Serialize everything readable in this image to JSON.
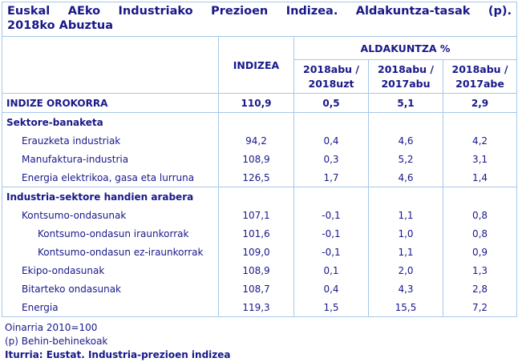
{
  "title": {
    "line1": "Euskal AEko Industriako Prezioen Indizea. Aldakuntza-tasak (p).",
    "line2": "2018ko Abuztua"
  },
  "table": {
    "col_headers": {
      "indizea": "INDIZEA",
      "aldakuntza": "ALDAKUNTZA %",
      "sub": [
        "2018abu /\n2018uzt",
        "2018abu /\n2017abu",
        "2018abu /\n2017abe"
      ]
    },
    "rows": [
      {
        "label": "INDIZE OROKORRA",
        "indent": 0,
        "bold": true,
        "top_border": false,
        "values": [
          "110,9",
          "0,5",
          "5,1",
          "2,9"
        ]
      },
      {
        "label": "Sektore-banaketa",
        "indent": 0,
        "bold": true,
        "top_border": true,
        "values": [
          "",
          "",
          "",
          ""
        ]
      },
      {
        "label": "Erauzketa industriak",
        "indent": 1,
        "bold": false,
        "top_border": false,
        "values": [
          "94,2",
          "0,4",
          "4,6",
          "4,2"
        ]
      },
      {
        "label": "Manufaktura-industria",
        "indent": 1,
        "bold": false,
        "top_border": false,
        "values": [
          "108,9",
          "0,3",
          "5,2",
          "3,1"
        ]
      },
      {
        "label": "Energia elektrikoa, gasa eta lurruna",
        "indent": 1,
        "bold": false,
        "top_border": false,
        "values": [
          "126,5",
          "1,7",
          "4,6",
          "1,4"
        ]
      },
      {
        "label": "Industria-sektore handien arabera",
        "indent": 0,
        "bold": true,
        "top_border": true,
        "values": [
          "",
          "",
          "",
          ""
        ]
      },
      {
        "label": "Kontsumo-ondasunak",
        "indent": 1,
        "bold": false,
        "top_border": false,
        "values": [
          "107,1",
          "-0,1",
          "1,1",
          "0,8"
        ]
      },
      {
        "label": "Kontsumo-ondasun iraunkorrak",
        "indent": 2,
        "bold": false,
        "top_border": false,
        "values": [
          "101,6",
          "-0,1",
          "1,0",
          "0,8"
        ]
      },
      {
        "label": "Kontsumo-ondasun ez-iraunkorrak",
        "indent": 2,
        "bold": false,
        "top_border": false,
        "values": [
          "109,0",
          "-0,1",
          "1,1",
          "0,9"
        ]
      },
      {
        "label": "Ekipo-ondasunak",
        "indent": 1,
        "bold": false,
        "top_border": false,
        "values": [
          "108,9",
          "0,1",
          "2,0",
          "1,3"
        ]
      },
      {
        "label": "Bitarteko ondasunak",
        "indent": 1,
        "bold": false,
        "top_border": false,
        "values": [
          "108,7",
          "0,4",
          "4,3",
          "2,8"
        ]
      },
      {
        "label": "Energia",
        "indent": 1,
        "bold": false,
        "top_border": false,
        "values": [
          "119,3",
          "1,5",
          "15,5",
          "7,2"
        ]
      }
    ]
  },
  "footer": {
    "base_note": "Oinarria 2010=100",
    "provisional_note": "(p) Behin-behinekoak",
    "source": "Iturria: Eustat. Industria-prezioen indizea"
  },
  "colors": {
    "text_navy": "#18188a",
    "border_blue": "#a6c8e8"
  }
}
